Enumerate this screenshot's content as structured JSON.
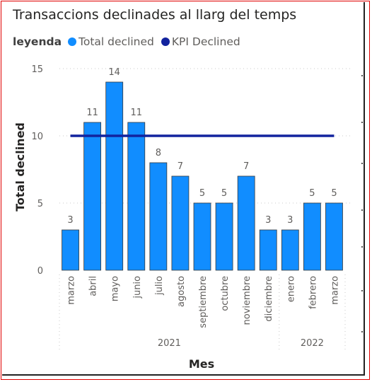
{
  "chart_data": {
    "type": "bar",
    "title": "Transaccions declinades al llarg del temps",
    "legend_title": "leyenda",
    "legend_position": "top-left",
    "series": [
      {
        "name": "Total declined",
        "kind": "bar",
        "color": "#118dff",
        "values": [
          3,
          11,
          14,
          11,
          8,
          7,
          5,
          5,
          7,
          3,
          3,
          5,
          5
        ]
      },
      {
        "name": "KPI Declined",
        "kind": "line",
        "color": "#12239e",
        "values": [
          10,
          10,
          10,
          10,
          10,
          10,
          10,
          10,
          10,
          10,
          10,
          10,
          10
        ]
      }
    ],
    "categories": [
      "marzo",
      "abril",
      "mayo",
      "junio",
      "julio",
      "agosto",
      "septiembre",
      "octubre",
      "noviembre",
      "diciembre",
      "enero",
      "febrero",
      "marzo"
    ],
    "years": [
      {
        "label": "2021",
        "start": 0,
        "end": 9
      },
      {
        "label": "2022",
        "start": 10,
        "end": 12
      }
    ],
    "xlabel": "Mes",
    "ylabel": "Total declined",
    "ylim": [
      0,
      15
    ],
    "yticks": [
      0,
      5,
      10,
      15
    ],
    "grid": true
  }
}
